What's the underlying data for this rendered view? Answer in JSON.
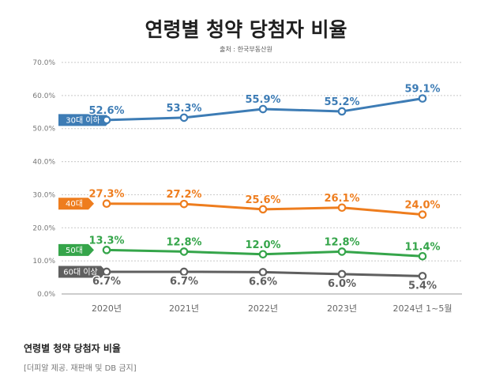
{
  "header": {
    "title": "연령별 청약 당첨자 비율",
    "source": "출처 : 한국부동산원"
  },
  "caption": {
    "title": "연령별 청약 당첨자 비율",
    "note": "[더피알 제공. 재판매 및 DB 금지]"
  },
  "chart_data": {
    "type": "line",
    "title": "연령별 청약 당첨자 비율",
    "subtitle": "출처 : 한국부동산원",
    "categories": [
      "2020년",
      "2021년",
      "2022년",
      "2023년",
      "2024년 1~5월"
    ],
    "y_ticks": [
      "0.0%",
      "10.0%",
      "20.0%",
      "30.0%",
      "40.0%",
      "50.0%",
      "60.0%",
      "70.0%"
    ],
    "ylim": [
      0,
      70
    ],
    "grid": true,
    "series": [
      {
        "name": "30대 이하",
        "color": "#3d7cb5",
        "values": [
          52.6,
          53.3,
          55.9,
          55.2,
          59.1
        ],
        "labels": [
          "52.6%",
          "53.3%",
          "55.9%",
          "55.2%",
          "59.1%"
        ]
      },
      {
        "name": "40대",
        "color": "#ee7d1e",
        "values": [
          27.3,
          27.2,
          25.6,
          26.1,
          24.0
        ],
        "labels": [
          "27.3%",
          "27.2%",
          "25.6%",
          "26.1%",
          "24.0%"
        ]
      },
      {
        "name": "50대",
        "color": "#35a54a",
        "values": [
          13.3,
          12.8,
          12.0,
          12.8,
          11.4
        ],
        "labels": [
          "13.3%",
          "12.8%",
          "12.0%",
          "12.8%",
          "11.4%"
        ]
      },
      {
        "name": "60대 이상",
        "color": "#5f5f5f",
        "values": [
          6.7,
          6.7,
          6.6,
          6.0,
          5.4
        ],
        "labels": [
          "6.7%",
          "6.7%",
          "6.6%",
          "6.0%",
          "5.4%"
        ]
      }
    ]
  }
}
